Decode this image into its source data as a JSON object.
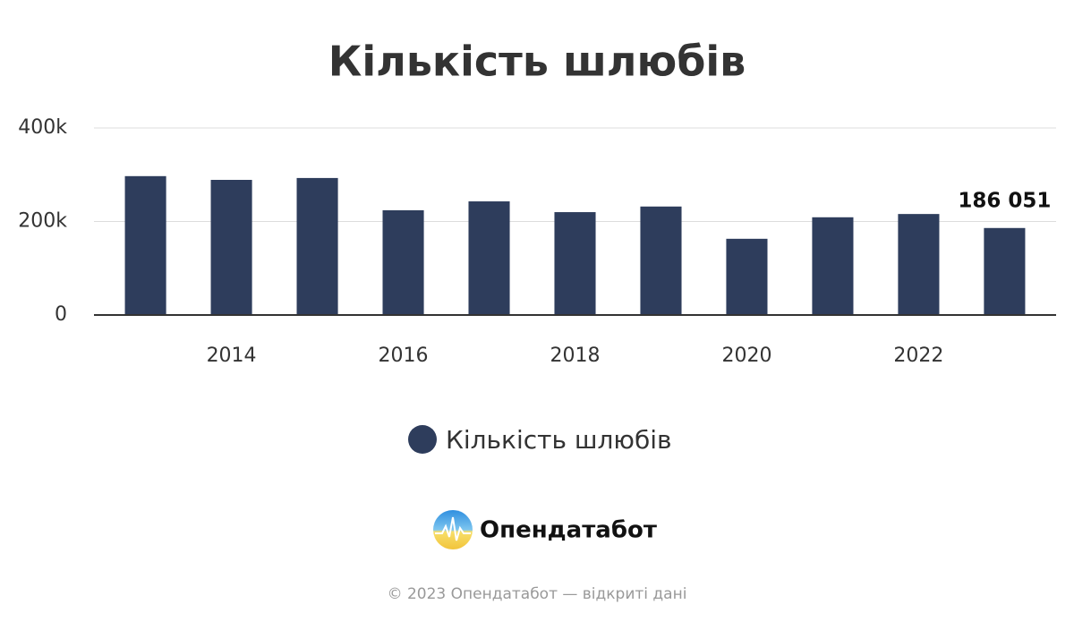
{
  "chart_data": {
    "type": "bar",
    "title": "Кількість шлюбів",
    "x": [
      2013,
      2014,
      2015,
      2016,
      2017,
      2018,
      2019,
      2020,
      2021,
      2022,
      2023
    ],
    "series": [
      {
        "name": "Кількість шлюбів",
        "color": "#2e3d5c",
        "values": [
          297000,
          289000,
          293000,
          224000,
          243000,
          220000,
          232000,
          163000,
          209000,
          216000,
          186051
        ],
        "value_labels": [
          null,
          null,
          null,
          null,
          null,
          null,
          null,
          null,
          null,
          null,
          "186 051"
        ]
      }
    ],
    "xlim": [
      2012.4,
      2023.6
    ],
    "xticks": [
      2014,
      2016,
      2018,
      2020,
      2022
    ],
    "ylim": [
      0,
      400000
    ],
    "yticks": [
      0,
      {
        "value": 200000,
        "label": "200k"
      },
      {
        "value": 400000,
        "label": "400k"
      }
    ],
    "grid": true
  },
  "branding": {
    "logo": "Опендатабот",
    "footer": "© 2023 Опендатабот — відкриті дані"
  }
}
